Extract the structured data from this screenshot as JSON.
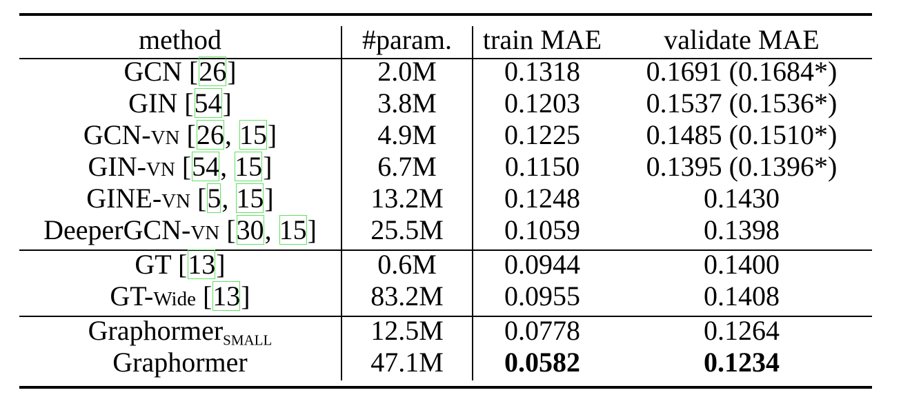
{
  "table": {
    "headers": [
      "method",
      "#param.",
      "train MAE",
      "validate MAE"
    ],
    "rows": [
      {
        "method": "GCN",
        "suffix": "",
        "cites": [
          "26"
        ],
        "param": "2.0M",
        "train": "0.1318",
        "validate": "0.1691 (0.1684*)"
      },
      {
        "method": "GIN",
        "suffix": "",
        "cites": [
          "54"
        ],
        "param": "3.8M",
        "train": "0.1203",
        "validate": "0.1537 (0.1536*)"
      },
      {
        "method": "GCN-",
        "suffix": "VN",
        "cites": [
          "26",
          "15"
        ],
        "param": "4.9M",
        "train": "0.1225",
        "validate": "0.1485 (0.1510*)"
      },
      {
        "method": "GIN-",
        "suffix": "VN",
        "cites": [
          "54",
          "15"
        ],
        "param": "6.7M",
        "train": "0.1150",
        "validate": "0.1395 (0.1396*)"
      },
      {
        "method": "GINE-",
        "suffix": "VN",
        "cites": [
          "5",
          "15"
        ],
        "param": "13.2M",
        "train": "0.1248",
        "validate": "0.1430"
      },
      {
        "method": "DeeperGCN-",
        "suffix": "VN",
        "cites": [
          "30",
          "15"
        ],
        "param": "25.5M",
        "train": "0.1059",
        "validate": "0.1398"
      },
      {
        "method": "GT",
        "suffix": "",
        "cites": [
          "13"
        ],
        "param": "0.6M",
        "train": "0.0944",
        "validate": "0.1400"
      },
      {
        "method": "GT-",
        "suffix": "Wide",
        "cites": [
          "13"
        ],
        "param": "83.2M",
        "train": "0.0955",
        "validate": "0.1408"
      },
      {
        "method": "Graphormer",
        "subscript": "SMALL",
        "cites": [],
        "param": "12.5M",
        "train": "0.0778",
        "validate": "0.1264"
      },
      {
        "method": "Graphormer",
        "suffix": "",
        "cites": [],
        "param": "47.1M",
        "train": "0.0582",
        "validate": "0.1234",
        "bold_train": true,
        "bold_validate": true
      }
    ]
  }
}
